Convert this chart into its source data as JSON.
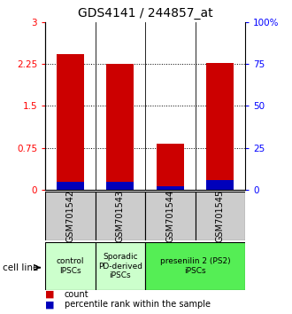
{
  "title": "GDS4141 / 244857_at",
  "samples": [
    "GSM701542",
    "GSM701543",
    "GSM701544",
    "GSM701545"
  ],
  "count_values": [
    2.42,
    2.25,
    0.83,
    2.27
  ],
  "percentile_values": [
    0.14,
    0.14,
    0.06,
    0.17
  ],
  "left_ylim": [
    0,
    3
  ],
  "right_ylim": [
    0,
    100
  ],
  "left_yticks": [
    0,
    0.75,
    1.5,
    2.25,
    3
  ],
  "right_yticks": [
    0,
    25,
    50,
    75,
    100
  ],
  "left_yticklabels": [
    "0",
    "0.75",
    "1.5",
    "2.25",
    "3"
  ],
  "right_yticklabels": [
    "0",
    "25",
    "50",
    "75",
    "100%"
  ],
  "bar_color_count": "#cc0000",
  "bar_color_percentile": "#0000bb",
  "bar_width": 0.55,
  "grid_yticks": [
    0.75,
    1.5,
    2.25
  ],
  "title_fontsize": 10,
  "tick_fontsize": 7.5,
  "sample_fontsize": 7,
  "group_fontsize": 6.5,
  "legend_fontsize": 7,
  "cell_line_fontsize": 7.5,
  "group_configs": [
    {
      "indices": [
        0
      ],
      "label": "control\nIPSCs",
      "color": "#ccffcc"
    },
    {
      "indices": [
        1
      ],
      "label": "Sporadic\nPD-derived\niPSCs",
      "color": "#ccffcc"
    },
    {
      "indices": [
        2,
        3
      ],
      "label": "presenilin 2 (PS2)\niPSCs",
      "color": "#55ee55"
    }
  ],
  "legend_count_label": "count",
  "legend_percentile_label": "percentile rank within the sample"
}
